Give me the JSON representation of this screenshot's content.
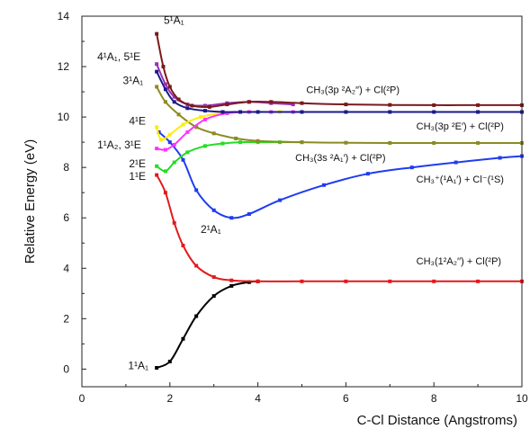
{
  "chart_data": {
    "type": "line",
    "xlabel": "C-Cl Distance (Angstroms)",
    "ylabel": "Relative Energy (eV)",
    "xlim": [
      0,
      10
    ],
    "ylim": [
      -0.7,
      14
    ],
    "xticks": [
      "0",
      "2",
      "4",
      "6",
      "8",
      "10"
    ],
    "yticks": [
      "0",
      "2",
      "4",
      "6",
      "8",
      "10",
      "12",
      "14"
    ],
    "grid": false,
    "series": [
      {
        "name": "1¹A₁",
        "color": "#000000",
        "x": [
          1.7,
          2.0,
          2.3,
          2.6,
          3.0,
          3.4,
          3.8,
          4.0
        ],
        "y": [
          0.05,
          0.3,
          1.2,
          2.1,
          2.9,
          3.3,
          3.45,
          3.48
        ]
      },
      {
        "name": "CH₃(1²A₂′′) + Cl(²P)",
        "color": "#e31a1c",
        "x": [
          1.7,
          1.9,
          2.1,
          2.3,
          2.6,
          3.0,
          3.4,
          4.0,
          5.0,
          6.0,
          7.0,
          8.0,
          9.0,
          10.0
        ],
        "y": [
          7.7,
          7.0,
          5.8,
          4.9,
          4.1,
          3.65,
          3.52,
          3.48,
          3.48,
          3.48,
          3.48,
          3.48,
          3.48,
          3.48
        ]
      },
      {
        "name": "CH₃⁺(¹A₁′) + Cl⁻(¹S)",
        "color": "#1f3cf0",
        "x": [
          1.75,
          2.0,
          2.3,
          2.6,
          3.0,
          3.4,
          3.8,
          4.5,
          5.5,
          6.5,
          7.5,
          8.5,
          9.5,
          10.0
        ],
        "y": [
          9.4,
          9.0,
          8.3,
          7.1,
          6.3,
          6.0,
          6.15,
          6.7,
          7.3,
          7.75,
          8.0,
          8.2,
          8.38,
          8.45
        ]
      },
      {
        "name": "CH₃(3s²A₁′) + Cl(²P)",
        "color": "#22dd22",
        "x": [
          1.7,
          1.9,
          2.1,
          2.4,
          2.8,
          3.2,
          3.6,
          4.0,
          4.5,
          5.0
        ],
        "y": [
          8.05,
          7.85,
          8.2,
          8.6,
          8.85,
          8.95,
          9.0,
          9.0,
          9.0,
          9.0
        ]
      },
      {
        "name": "CH₃(3p²E′) + Cl(²P)",
        "color": "#8b8b22",
        "x": [
          1.7,
          1.9,
          2.2,
          2.6,
          3.0,
          3.5,
          4.0,
          5.0,
          6.0,
          7.0,
          8.0,
          9.0,
          10.0
        ],
        "y": [
          11.2,
          10.6,
          10.1,
          9.6,
          9.35,
          9.15,
          9.05,
          9.0,
          8.98,
          8.97,
          8.97,
          8.97,
          8.97
        ]
      },
      {
        "name": "4¹E",
        "color": "#ffee00",
        "x": [
          1.7,
          1.8,
          2.0,
          2.3,
          2.7,
          3.2,
          3.8,
          4.5,
          5.0
        ],
        "y": [
          9.6,
          9.1,
          9.3,
          9.7,
          10.0,
          10.15,
          10.2,
          10.2,
          10.2
        ]
      },
      {
        "name": "1¹A₂, 3¹E",
        "color": "#ff33ff",
        "x": [
          1.7,
          1.9,
          2.1,
          2.4,
          2.8,
          3.3,
          3.8,
          4.3,
          4.8
        ],
        "y": [
          8.75,
          8.7,
          8.9,
          9.4,
          9.9,
          10.15,
          10.2,
          10.2,
          10.2
        ]
      },
      {
        "name": "3¹A₁",
        "color": "#1a1a8c",
        "x": [
          1.7,
          1.9,
          2.1,
          2.4,
          2.8,
          3.2,
          3.6,
          4.0,
          5.0,
          6.0,
          7.0,
          8.0,
          9.0,
          10.0
        ],
        "y": [
          11.8,
          11.1,
          10.6,
          10.35,
          10.25,
          10.2,
          10.2,
          10.2,
          10.2,
          10.2,
          10.2,
          10.2,
          10.2,
          10.2
        ]
      },
      {
        "name": "4¹A₁, 5¹E",
        "color": "#9a2fb8",
        "x": [
          1.7,
          1.9,
          2.1,
          2.4,
          2.8,
          3.3,
          3.8,
          4.3,
          4.8
        ],
        "y": [
          12.1,
          11.3,
          10.8,
          10.5,
          10.45,
          10.55,
          10.6,
          10.55,
          10.5
        ]
      },
      {
        "name": "CH₃(3p²A₂′′) + Cl(²P)",
        "color": "#7a1a1a",
        "x": [
          1.7,
          1.85,
          2.0,
          2.2,
          2.5,
          2.9,
          3.3,
          3.8,
          4.3,
          5.0,
          6.0,
          7.0,
          8.0,
          9.0,
          10.0
        ],
        "y": [
          13.3,
          12.0,
          11.2,
          10.7,
          10.45,
          10.4,
          10.5,
          10.6,
          10.6,
          10.55,
          10.5,
          10.48,
          10.47,
          10.47,
          10.47
        ]
      }
    ],
    "annotations": [
      {
        "text": "5¹A₁",
        "x": 1.86,
        "y": 13.7
      },
      {
        "text": "4¹A₁, 5¹E",
        "x": 0.35,
        "y": 12.25
      },
      {
        "text": "3¹A₁",
        "x": 0.93,
        "y": 11.3
      },
      {
        "text": "4¹E",
        "x": 1.07,
        "y": 9.7
      },
      {
        "text": "1¹A₂, 3¹E",
        "x": 0.35,
        "y": 8.75
      },
      {
        "text": "2¹E",
        "x": 1.07,
        "y": 8.0
      },
      {
        "text": "1¹E",
        "x": 1.07,
        "y": 7.5
      },
      {
        "text": "2¹A₁",
        "x": 2.7,
        "y": 5.4
      },
      {
        "text": "1¹A₁",
        "x": 1.05,
        "y": 0.0
      },
      {
        "text": "CH₃(3p ²A₂′′) + Cl(²P)",
        "x": 5.1,
        "y": 10.95
      },
      {
        "text": "CH₃(3p ²E′) + Cl(²P)",
        "x": 7.6,
        "y": 9.5
      },
      {
        "text": "CH₃(3s ²A₁′) + Cl(²P)",
        "x": 4.85,
        "y": 8.25
      },
      {
        "text": "CH₃⁺(¹A₁′) + Cl⁻(¹S)",
        "x": 7.6,
        "y": 7.4
      },
      {
        "text": "CH₃(1²A₂′′) + Cl(²P)",
        "x": 7.6,
        "y": 4.15
      }
    ]
  }
}
